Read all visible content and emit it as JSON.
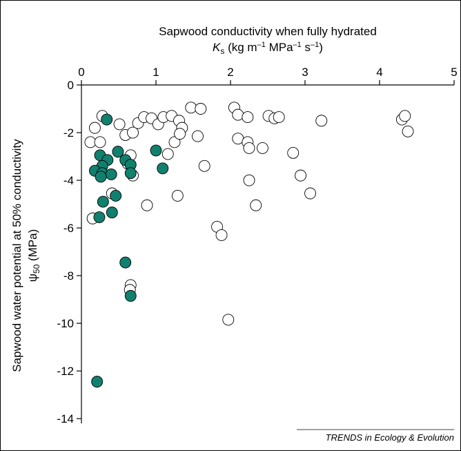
{
  "chart_data": {
    "type": "scatter",
    "title": "Sapwood conductivity when fully hydrated",
    "x_label_parts": [
      "K",
      "s",
      " (kg m",
      "–1",
      " MPa",
      "–1",
      " s",
      "–1",
      ")"
    ],
    "y_label": "Sapwood water potential at 50% conductivity",
    "y_label_parts": [
      "ψ",
      "50",
      " (MPa)"
    ],
    "source": "TRENDS in Ecology & Evolution",
    "xlim": [
      0,
      5
    ],
    "xticks": [
      0,
      1,
      2,
      3,
      4,
      5
    ],
    "ylim": [
      -14.2,
      0
    ],
    "yticks": [
      0,
      -2,
      -4,
      -6,
      -8,
      -10,
      -12,
      -14
    ],
    "series": [
      {
        "color": "#ffffff",
        "x": [
          0.28,
          0.18,
          0.12,
          0.25,
          0.51,
          0.59,
          0.69,
          0.76,
          0.84,
          0.94,
          1.03,
          1.1,
          1.21,
          1.31,
          1.35,
          1.25,
          1.32,
          1.47,
          1.6,
          1.56,
          1.16,
          0.62,
          0.69,
          0.66,
          1.65,
          0.88,
          1.29,
          0.41,
          0.15,
          1.82,
          1.88,
          0.66,
          0.65,
          1.97,
          2.05,
          2.1,
          2.23,
          2.1,
          2.23,
          2.25,
          2.25,
          2.34,
          2.43,
          2.51,
          2.59,
          2.65,
          2.84,
          2.94,
          3.07,
          3.22,
          4.3,
          4.34,
          4.38
        ],
        "y": [
          -1.3,
          -1.8,
          -2.4,
          -2.4,
          -1.65,
          -2.1,
          -2.0,
          -1.6,
          -1.35,
          -1.4,
          -1.65,
          -1.35,
          -1.3,
          -1.5,
          -1.8,
          -2.4,
          -2.05,
          -0.95,
          -1.0,
          -2.15,
          -2.9,
          -3.3,
          -3.8,
          -2.95,
          -3.4,
          -5.05,
          -4.65,
          -4.55,
          -5.6,
          -5.95,
          -6.3,
          -8.4,
          -8.6,
          -9.85,
          -0.95,
          -1.25,
          -1.35,
          -2.25,
          -2.4,
          -2.65,
          -4.0,
          -5.05,
          -2.65,
          -1.3,
          -1.4,
          -1.35,
          -2.85,
          -3.8,
          -4.55,
          -1.5,
          -1.45,
          -1.3,
          -1.95
        ]
      },
      {
        "color": "#12806e",
        "x": [
          0.34,
          0.49,
          0.25,
          0.35,
          0.28,
          0.18,
          0.28,
          0.4,
          0.26,
          0.59,
          0.66,
          0.66,
          1.0,
          1.09,
          0.46,
          0.29,
          0.41,
          0.24,
          0.59,
          0.66,
          0.21
        ],
        "y": [
          -1.45,
          -2.8,
          -2.95,
          -3.15,
          -3.4,
          -3.6,
          -3.7,
          -3.75,
          -3.85,
          -3.15,
          -3.35,
          -3.7,
          -2.75,
          -3.5,
          -4.65,
          -4.9,
          -5.35,
          -5.55,
          -7.45,
          -8.85,
          -12.45
        ]
      }
    ]
  }
}
